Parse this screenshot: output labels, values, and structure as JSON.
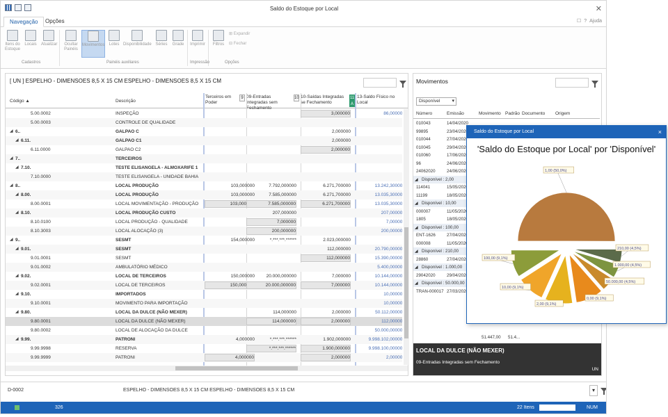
{
  "window": {
    "title": "Saldo do Estoque por Local"
  },
  "tabs": [
    {
      "label": "Navegação"
    },
    {
      "label": "Opções"
    }
  ],
  "help": {
    "label": "Ajuda"
  },
  "ribbon": {
    "buttons": [
      {
        "label": "Itens do Estoque"
      },
      {
        "label": "Locais"
      },
      {
        "label": "Atualizar"
      },
      {
        "label": "Ocultar Painéis"
      },
      {
        "label": "Movimentos"
      },
      {
        "label": "Lotes"
      },
      {
        "label": "Disponibilidade"
      },
      {
        "label": "Séries"
      },
      {
        "label": "Grade"
      },
      {
        "label": "Imprimir"
      },
      {
        "label": "Filtros"
      }
    ],
    "small": [
      {
        "label": "Expandir"
      },
      {
        "label": "Fechar"
      }
    ],
    "groups": [
      {
        "label": "Cadastros"
      },
      {
        "label": "Painéis auxiliares"
      },
      {
        "label": "Impressão"
      },
      {
        "label": "Opções"
      }
    ]
  },
  "left": {
    "title": "[ UN ] ESPELHO - DIMENSOES 8,5 X 15 CM ESPELHO - DIMENSOES 8,5 X 15 CM",
    "headers": {
      "code": "Código",
      "desc": "Descrição",
      "terceiros": "Terceiros em Poder",
      "n9": "9",
      "entradas": "09-Entradas Integradas sem Fechamento",
      "n10": "10",
      "saidas": "10-Saídas Integradas se Fechamento",
      "n11": "11 A",
      "saldo": "13-Saldo Físico no Local"
    },
    "rows": [
      {
        "code": "5.00.0002",
        "desc": "INSPEÇÃO",
        "t": "",
        "e": "",
        "s": "3,000000",
        "sf": "86,000000",
        "lvl": 3,
        "b": false
      },
      {
        "code": "5.00.0003",
        "desc": "CONTROLE DE QUALIDADE",
        "t": "",
        "e": "",
        "s": "",
        "sf": "",
        "lvl": 3,
        "b": false
      },
      {
        "code": "6..",
        "desc": "GALPAO C",
        "t": "",
        "e": "",
        "s": "2,000000",
        "sf": "",
        "lvl": 1,
        "b": true
      },
      {
        "code": "6.11.",
        "desc": "GALPAO C1",
        "t": "",
        "e": "",
        "s": "2,000000",
        "sf": "",
        "lvl": 2,
        "b": true
      },
      {
        "code": "6.11.0000",
        "desc": "GALPAO C2",
        "t": "",
        "e": "",
        "s": "2,000000",
        "sf": "",
        "lvl": 3,
        "b": false
      },
      {
        "code": "7..",
        "desc": "TERCEIROS",
        "t": "",
        "e": "",
        "s": "",
        "sf": "",
        "lvl": 1,
        "b": true
      },
      {
        "code": "7.10.",
        "desc": "TESTE ELISANGELA - ALMOXARIFE 1",
        "t": "",
        "e": "",
        "s": "",
        "sf": "",
        "lvl": 2,
        "b": true
      },
      {
        "code": "7.10.0000",
        "desc": "TESTE ELISANGELA - UNIDADE BAHIA",
        "t": "",
        "e": "",
        "s": "",
        "sf": "",
        "lvl": 3,
        "b": false
      },
      {
        "code": "8..",
        "desc": "LOCAL PRODUÇÃO",
        "t": "103,000000",
        "e": "7.792,000000",
        "s": "6.271,700000",
        "sf": "13.242,300000",
        "lvl": 1,
        "b": true
      },
      {
        "code": "8.00.",
        "desc": "LOCAL PRODUÇÃO",
        "t": "103,000000",
        "e": "7.585,000000",
        "s": "6.271,700000",
        "sf": "13.035,300000",
        "lvl": 2,
        "b": true
      },
      {
        "code": "8.00.0001",
        "desc": "LOCAL MOVIMENTAÇÃO - PRODUÇÃO",
        "t": "103,000000",
        "e": "7.585,000000",
        "s": "6.271,700000",
        "sf": "13.035,300000",
        "lvl": 3,
        "b": false
      },
      {
        "code": "8.10.",
        "desc": "LOCAL PRODUÇÃO CUSTO",
        "t": "",
        "e": "207,000000",
        "s": "",
        "sf": "207,000000",
        "lvl": 2,
        "b": true
      },
      {
        "code": "8.10.0100",
        "desc": "LOCAL PRODUÇÃO - QUALIDADE",
        "t": "",
        "e": "7,000000",
        "s": "",
        "sf": "7,000000",
        "lvl": 3,
        "b": false
      },
      {
        "code": "8.10.3003",
        "desc": "LOCAL ALOCAÇÃO (3)",
        "t": "",
        "e": "200,000000",
        "s": "",
        "sf": "200,000000",
        "lvl": 3,
        "b": false
      },
      {
        "code": "9..",
        "desc": "SESMT",
        "t": "154,000000",
        "e": "*.***.***.******",
        "s": "2.023,000000",
        "sf": "",
        "lvl": 1,
        "b": true
      },
      {
        "code": "9.01.",
        "desc": "SESMT",
        "t": "",
        "e": "",
        "s": "112,000000",
        "sf": "20.790,000000",
        "lvl": 2,
        "b": true
      },
      {
        "code": "9.01.0001",
        "desc": "SESMT",
        "t": "",
        "e": "",
        "s": "112,000000",
        "sf": "15.390,000000",
        "lvl": 3,
        "b": false
      },
      {
        "code": "9.01.0002",
        "desc": "AMBULATÓRIO MÉDICO",
        "t": "",
        "e": "",
        "s": "",
        "sf": "5.400,000000",
        "lvl": 3,
        "b": false
      },
      {
        "code": "9.02.",
        "desc": "LOCAL DE TERCEIROS",
        "t": "150,000000",
        "e": "20.000,000000",
        "s": "7,000000",
        "sf": "10.144,000000",
        "lvl": 2,
        "b": true
      },
      {
        "code": "9.02.0001",
        "desc": "LOCAL DE TERCEIROS",
        "t": "150,000000",
        "e": "20.000,000000",
        "s": "7,000000",
        "sf": "10.144,000000",
        "lvl": 3,
        "b": false
      },
      {
        "code": "9.10.",
        "desc": "IMPORTADOS",
        "t": "",
        "e": "",
        "s": "",
        "sf": "10,000000",
        "lvl": 2,
        "b": true
      },
      {
        "code": "9.10.0001",
        "desc": "MOVIMENTO PARA IMPORTAÇÃO",
        "t": "",
        "e": "",
        "s": "",
        "sf": "10,000000",
        "lvl": 3,
        "b": false
      },
      {
        "code": "9.80.",
        "desc": "LOCAL DA DULCE (NÃO MEXER)",
        "t": "",
        "e": "114,000000",
        "s": "2,000000",
        "sf": "50.112,000000",
        "lvl": 2,
        "b": true
      },
      {
        "code": "9.80.0001",
        "desc": "LOCAL DA DULCE (NÃO MEXER)",
        "t": "",
        "e": "114,000000",
        "s": "2,000000",
        "sf": "112,000000",
        "lvl": 3,
        "b": false
      },
      {
        "code": "9.80.0002",
        "desc": "LOCAL DE ALOCAÇÃO DA DULCE",
        "t": "",
        "e": "",
        "s": "",
        "sf": "50.000,000000",
        "lvl": 3,
        "b": false
      },
      {
        "code": "9.99.",
        "desc": "PATRONI",
        "t": "4,000000",
        "e": "*.***.***.******",
        "s": "1.902,000000",
        "sf": "9.998.102,000000",
        "lvl": 2,
        "b": true
      },
      {
        "code": "9.99.9998",
        "desc": "RESERVA",
        "t": "",
        "e": "*.***.***.******",
        "s": "1.900,000000",
        "sf": "9.998.100,000000",
        "lvl": 3,
        "b": false
      },
      {
        "code": "9.99.9999",
        "desc": "PATRONI",
        "t": "4,000000",
        "e": "",
        "s": "2,000000",
        "sf": "2,000000",
        "lvl": 3,
        "b": false
      }
    ]
  },
  "right": {
    "title": "Movimentos",
    "combo": "Disponível",
    "headers": [
      "Número",
      "Emissão",
      "Movimento",
      "Padrão",
      "Documento",
      "Origem"
    ],
    "rows": [
      {
        "n": "010043",
        "d": "14/04/2020",
        "g": false
      },
      {
        "n": "99895",
        "d": "23/04/2020",
        "g": false
      },
      {
        "n": "010044",
        "d": "27/04/2020",
        "g": false
      },
      {
        "n": "010045",
        "d": "29/04/2020",
        "g": false
      },
      {
        "n": "010060",
        "d": "17/06/2020",
        "g": false
      },
      {
        "n": "96",
        "d": "24/06/2020",
        "g": false
      },
      {
        "n": "24062020",
        "d": "24/06/2020",
        "g": false
      },
      {
        "n": "Disponível : 2,00",
        "d": "",
        "g": true
      },
      {
        "n": "114041",
        "d": "15/05/2020",
        "g": false
      },
      {
        "n": "11199",
        "d": "18/05/2020",
        "g": false
      },
      {
        "n": "Disponível : 10,00",
        "d": "",
        "g": true
      },
      {
        "n": "000007",
        "d": "11/05/2020",
        "g": false
      },
      {
        "n": "1805",
        "d": "18/05/2020",
        "g": false
      },
      {
        "n": "Disponível : 100,00",
        "d": "",
        "g": true
      },
      {
        "n": "ENT-1626",
        "d": "27/04/2020",
        "g": false
      },
      {
        "n": "000008",
        "d": "11/05/2020",
        "g": false
      },
      {
        "n": "Disponível : 210,00",
        "d": "",
        "g": true
      },
      {
        "n": "28860",
        "d": "27/04/2020",
        "g": false
      },
      {
        "n": "Disponível : 1.000,00",
        "d": "",
        "g": true
      },
      {
        "n": "29042020",
        "d": "29/04/2020",
        "g": false
      },
      {
        "n": "Disponível : 50.000,00",
        "d": "",
        "g": true
      },
      {
        "n": "TRAN-000017",
        "d": "27/03/2020",
        "g": false
      }
    ],
    "totals": [
      "51.447,00",
      "51.4..."
    ],
    "footer": {
      "title": "LOCAL DA DULCE (NÃO MEXER)",
      "subtitle": "09-Entradas Integradas sem Fechamento",
      "unit": "UN"
    }
  },
  "bottom": {
    "code": "D-0002",
    "desc": "ESPELHO - DIMENSOES 8,5 X 15 CM ESPELHO - DIMENSOES 8,5 X 15 CM"
  },
  "status": {
    "count": "326",
    "items": "22 Itens",
    "mode": "NUM"
  },
  "popup": {
    "window_title": "Saldo do Estoque por Local",
    "title": "'Saldo do Estoque por Local'  por  'Disponível'",
    "close": "×"
  },
  "chart_data": {
    "type": "pie",
    "title": "'Saldo do Estoque por Local'  por  'Disponível'",
    "slices": [
      {
        "label": "1,00 (50,0%)",
        "value": 50.0,
        "color": "#b87a3e"
      },
      {
        "label": "210,00 (4,5%)",
        "value": 4.5,
        "color": "#5b6b4a"
      },
      {
        "label": "1.000,00 (4,5%)",
        "value": 4.5,
        "color": "#7d9440"
      },
      {
        "label": "50.000,00 (4,5%)",
        "value": 4.5,
        "color": "#c98a2c"
      },
      {
        "label": "0,00 (9,1%)",
        "value": 9.1,
        "color": "#e88a1c"
      },
      {
        "label": "2,00 (9,1%)",
        "value": 9.1,
        "color": "#e6b21e"
      },
      {
        "label": "10,00 (9,1%)",
        "value": 9.1,
        "color": "#f0a52a"
      },
      {
        "label": "100,00 (9,1%)",
        "value": 9.1,
        "color": "#8c9c3a"
      }
    ]
  }
}
